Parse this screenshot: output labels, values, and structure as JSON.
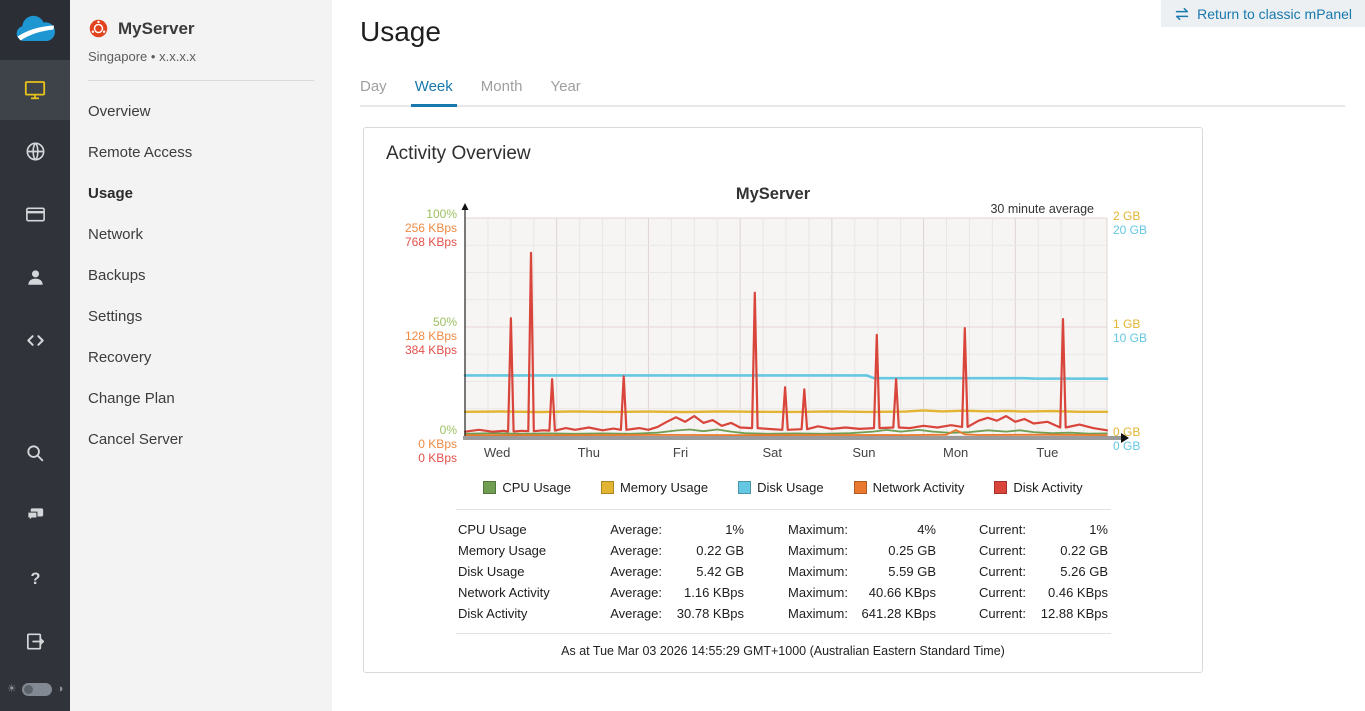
{
  "rail": {
    "logo_icon": "cloud-logo",
    "items": [
      {
        "icon": "monitor-icon",
        "active": true
      },
      {
        "icon": "globe-icon",
        "active": false
      },
      {
        "icon": "credit-card-icon",
        "active": false
      },
      {
        "icon": "user-icon",
        "active": false
      },
      {
        "icon": "code-icon",
        "active": false
      },
      {
        "icon": "search-icon",
        "active": false
      },
      {
        "icon": "chat-icon",
        "active": false
      },
      {
        "icon": "help-icon",
        "active": false
      },
      {
        "icon": "logout-icon",
        "active": false
      }
    ],
    "theme_toggle": {
      "left_icon": "sun-icon",
      "control": "toggle-switch",
      "right_icon": "contrast-icon"
    }
  },
  "server": {
    "icon": "ubuntu-icon",
    "name": "MyServer",
    "location": "Singapore",
    "sep": "•",
    "ip": "x.x.x.x"
  },
  "nav": {
    "items": [
      {
        "label": "Overview",
        "active": false
      },
      {
        "label": "Remote Access",
        "active": false
      },
      {
        "label": "Usage",
        "active": true
      },
      {
        "label": "Network",
        "active": false
      },
      {
        "label": "Backups",
        "active": false
      },
      {
        "label": "Settings",
        "active": false
      },
      {
        "label": "Recovery",
        "active": false
      },
      {
        "label": "Change Plan",
        "active": false
      },
      {
        "label": "Cancel Server",
        "active": false
      }
    ]
  },
  "header": {
    "title": "Usage",
    "return_button_label": "Return to classic mPanel",
    "return_button_icon": "swap-arrows-icon"
  },
  "tabs": [
    {
      "label": "Day",
      "active": false
    },
    {
      "label": "Week",
      "active": true
    },
    {
      "label": "Month",
      "active": false
    },
    {
      "label": "Year",
      "active": false
    }
  ],
  "card": {
    "title": "Activity Overview"
  },
  "chart_data": {
    "type": "line",
    "title": "MyServer",
    "note": "30 minute average",
    "x_categories": [
      "Wed",
      "Thu",
      "Fri",
      "Sat",
      "Sun",
      "Mon",
      "Tue"
    ],
    "x_range_days": [
      0,
      7
    ],
    "grid": true,
    "legend_position": "bottom",
    "left_axis_ticks": [
      {
        "pos": 1.0,
        "labels": [
          "100%",
          "256 KBps",
          "768 KBps"
        ]
      },
      {
        "pos": 0.5,
        "labels": [
          "50%",
          "128 KBps",
          "384 KBps"
        ]
      },
      {
        "pos": 0.0,
        "labels": [
          "0%",
          "0 KBps",
          "0 KBps"
        ]
      }
    ],
    "left_axis_colors": [
      "#9dc162",
      "#f08a44",
      "#e4514a"
    ],
    "right_axis_ticks": [
      {
        "pos": 1.0,
        "labels": [
          "2 GB",
          "20 GB"
        ]
      },
      {
        "pos": 0.5,
        "labels": [
          "1 GB",
          "10 GB"
        ]
      },
      {
        "pos": 0.0,
        "labels": [
          "0 GB",
          "0 GB"
        ]
      }
    ],
    "right_axis_colors": [
      "#e2b431",
      "#64c8e2"
    ],
    "draw_order": [
      2,
      1,
      0,
      3,
      4
    ],
    "series": [
      {
        "name": "CPU Usage",
        "color": "#6f9e53",
        "unit": "%",
        "axis_max": 100,
        "stroke": 1.8,
        "points": [
          [
            0,
            1
          ],
          [
            0.3,
            1.3
          ],
          [
            0.6,
            1
          ],
          [
            0.9,
            1.2
          ],
          [
            1.2,
            1
          ],
          [
            1.5,
            1.2
          ],
          [
            1.8,
            1
          ],
          [
            2.1,
            1.5
          ],
          [
            2.3,
            2.5
          ],
          [
            2.45,
            3
          ],
          [
            2.6,
            2.2
          ],
          [
            2.75,
            3
          ],
          [
            2.9,
            2
          ],
          [
            3.05,
            1.3
          ],
          [
            3.3,
            1
          ],
          [
            3.6,
            1.2
          ],
          [
            3.9,
            1
          ],
          [
            4.2,
            1.3
          ],
          [
            4.45,
            2
          ],
          [
            4.6,
            2.8
          ],
          [
            4.75,
            2
          ],
          [
            4.95,
            2.8
          ],
          [
            5.1,
            2
          ],
          [
            5.3,
            1.4
          ],
          [
            5.5,
            1.8
          ],
          [
            5.7,
            2.6
          ],
          [
            5.9,
            2
          ],
          [
            6.05,
            2.6
          ],
          [
            6.2,
            1.8
          ],
          [
            6.4,
            1.3
          ],
          [
            6.6,
            1.5
          ],
          [
            6.8,
            1.1
          ],
          [
            7,
            1.2
          ]
        ]
      },
      {
        "name": "Memory Usage",
        "color": "#e2b431",
        "unit": "GB",
        "axis_max": 2,
        "stroke": 2.4,
        "points": [
          [
            0,
            0.222
          ],
          [
            0.4,
            0.225
          ],
          [
            0.8,
            0.22
          ],
          [
            1.2,
            0.226
          ],
          [
            1.6,
            0.221
          ],
          [
            2.0,
            0.224
          ],
          [
            2.4,
            0.22
          ],
          [
            2.8,
            0.226
          ],
          [
            3.2,
            0.222
          ],
          [
            3.6,
            0.221
          ],
          [
            4.0,
            0.226
          ],
          [
            4.4,
            0.221
          ],
          [
            4.8,
            0.224
          ],
          [
            5.0,
            0.235
          ],
          [
            5.2,
            0.226
          ],
          [
            5.45,
            0.232
          ],
          [
            5.7,
            0.226
          ],
          [
            5.9,
            0.23
          ],
          [
            6.1,
            0.224
          ],
          [
            6.4,
            0.228
          ],
          [
            6.7,
            0.222
          ],
          [
            7,
            0.222
          ]
        ]
      },
      {
        "name": "Disk Usage",
        "color": "#64c8e2",
        "unit": "GB",
        "axis_max": 20,
        "stroke": 2.6,
        "points": [
          [
            0,
            5.56
          ],
          [
            4.38,
            5.56
          ],
          [
            4.46,
            5.3
          ],
          [
            6.1,
            5.3
          ],
          [
            6.2,
            5.27
          ],
          [
            7,
            5.26
          ]
        ]
      },
      {
        "name": "Network Activity",
        "color": "#e8792e",
        "unit": "KBps",
        "axis_max": 256,
        "stroke": 1.8,
        "points": [
          [
            0,
            1
          ],
          [
            1,
            1
          ],
          [
            2,
            1.3
          ],
          [
            3,
            1
          ],
          [
            4,
            1.2
          ],
          [
            4.8,
            1
          ],
          [
            5.25,
            1.5
          ],
          [
            5.35,
            7
          ],
          [
            5.45,
            2
          ],
          [
            5.6,
            1.2
          ],
          [
            6.3,
            1.5
          ],
          [
            7,
            1
          ]
        ]
      },
      {
        "name": "Disk Activity",
        "color": "#d9453b",
        "unit": "KBps",
        "axis_max": 768,
        "stroke": 2.2,
        "points": [
          [
            0,
            15
          ],
          [
            0.15,
            22
          ],
          [
            0.3,
            15
          ],
          [
            0.42,
            18
          ],
          [
            0.47,
            16
          ],
          [
            0.5,
            415
          ],
          [
            0.53,
            16
          ],
          [
            0.62,
            18
          ],
          [
            0.69,
            17
          ],
          [
            0.72,
            645
          ],
          [
            0.75,
            17
          ],
          [
            0.85,
            20
          ],
          [
            0.92,
            19
          ],
          [
            0.95,
            200
          ],
          [
            0.98,
            19
          ],
          [
            1.1,
            28
          ],
          [
            1.2,
            22
          ],
          [
            1.35,
            30
          ],
          [
            1.5,
            20
          ],
          [
            1.62,
            26
          ],
          [
            1.7,
            22
          ],
          [
            1.73,
            210
          ],
          [
            1.76,
            22
          ],
          [
            1.9,
            28
          ],
          [
            2.0,
            22
          ],
          [
            2.1,
            32
          ],
          [
            2.2,
            50
          ],
          [
            2.3,
            66
          ],
          [
            2.4,
            50
          ],
          [
            2.5,
            70
          ],
          [
            2.6,
            46
          ],
          [
            2.7,
            56
          ],
          [
            2.8,
            36
          ],
          [
            2.9,
            46
          ],
          [
            3.0,
            30
          ],
          [
            3.13,
            28
          ],
          [
            3.16,
            505
          ],
          [
            3.19,
            28
          ],
          [
            3.3,
            25
          ],
          [
            3.46,
            22
          ],
          [
            3.49,
            172
          ],
          [
            3.52,
            22
          ],
          [
            3.67,
            24
          ],
          [
            3.7,
            164
          ],
          [
            3.73,
            24
          ],
          [
            3.85,
            34
          ],
          [
            4.0,
            25
          ],
          [
            4.15,
            30
          ],
          [
            4.3,
            25
          ],
          [
            4.46,
            28
          ],
          [
            4.49,
            356
          ],
          [
            4.52,
            28
          ],
          [
            4.67,
            30
          ],
          [
            4.7,
            200
          ],
          [
            4.73,
            30
          ],
          [
            4.85,
            28
          ],
          [
            5.0,
            36
          ],
          [
            5.15,
            30
          ],
          [
            5.3,
            38
          ],
          [
            5.42,
            32
          ],
          [
            5.45,
            380
          ],
          [
            5.48,
            32
          ],
          [
            5.6,
            54
          ],
          [
            5.7,
            64
          ],
          [
            5.8,
            54
          ],
          [
            5.9,
            70
          ],
          [
            6.0,
            50
          ],
          [
            6.1,
            60
          ],
          [
            6.2,
            44
          ],
          [
            6.35,
            50
          ],
          [
            6.49,
            30
          ],
          [
            6.52,
            412
          ],
          [
            6.55,
            30
          ],
          [
            6.7,
            40
          ],
          [
            6.85,
            28
          ],
          [
            7,
            20
          ]
        ]
      }
    ]
  },
  "stats": {
    "rows": [
      {
        "label": "CPU Usage",
        "avg_label": "Average:",
        "avg": "1%",
        "max_label": "Maximum:",
        "max": "4%",
        "cur_label": "Current:",
        "cur": "1%"
      },
      {
        "label": "Memory Usage",
        "avg_label": "Average:",
        "avg": "0.22 GB",
        "max_label": "Maximum:",
        "max": "0.25 GB",
        "cur_label": "Current:",
        "cur": "0.22 GB"
      },
      {
        "label": "Disk Usage",
        "avg_label": "Average:",
        "avg": "5.42 GB",
        "max_label": "Maximum:",
        "max": "5.59 GB",
        "cur_label": "Current:",
        "cur": "5.26 GB"
      },
      {
        "label": "Network Activity",
        "avg_label": "Average:",
        "avg": "1.16 KBps",
        "max_label": "Maximum:",
        "max": "40.66 KBps",
        "cur_label": "Current:",
        "cur": "0.46 KBps"
      },
      {
        "label": "Disk Activity",
        "avg_label": "Average:",
        "avg": "30.78 KBps",
        "max_label": "Maximum:",
        "max": "641.28 KBps",
        "cur_label": "Current:",
        "cur": "12.88 KBps"
      }
    ]
  },
  "footer": {
    "as_at": "As at Tue Mar 03 2026 14:55:29 GMT+1000 (Australian Eastern Standard Time)"
  },
  "theme": {
    "accent": "#1879ad",
    "rail_bg": "#30343a",
    "rail_active_bg": "#3e434a",
    "monitor_yellow": "#e8c21a",
    "sidebar_bg": "#f3f3f3",
    "button_bg": "#edf0f2",
    "ubuntu_orange": "#e95420"
  }
}
